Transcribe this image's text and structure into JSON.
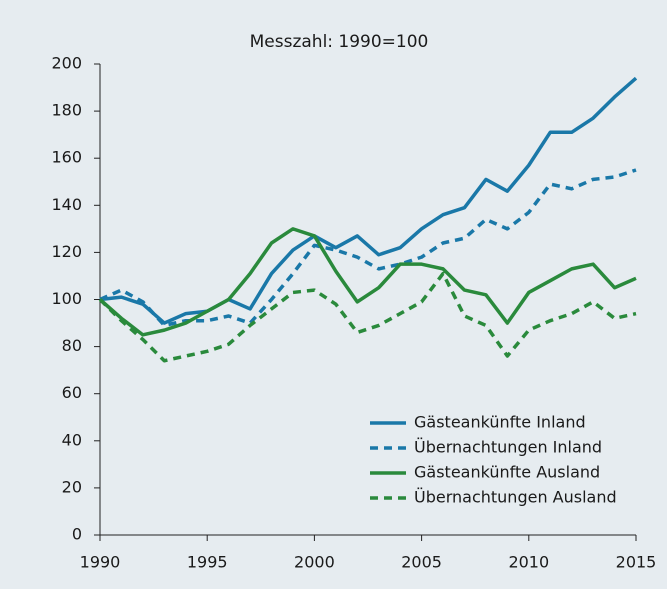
{
  "chart_data": {
    "type": "line",
    "title": "Messzahl: 1990=100",
    "x": [
      1990,
      1991,
      1992,
      1993,
      1994,
      1995,
      1996,
      1997,
      1998,
      1999,
      2000,
      2001,
      2002,
      2003,
      2004,
      2005,
      2006,
      2007,
      2008,
      2009,
      2010,
      2011,
      2012,
      2013,
      2014,
      2015
    ],
    "xlim": [
      1990,
      2015
    ],
    "xticks": [
      1990,
      1995,
      2000,
      2005,
      2010,
      2015
    ],
    "ylim": [
      0,
      200
    ],
    "yticks": [
      0,
      20,
      40,
      60,
      80,
      100,
      120,
      140,
      160,
      180,
      200
    ],
    "legend": "lower right",
    "series": [
      {
        "name": "Gästeankünfte Inland",
        "color": "#1a78a8",
        "dashed": false,
        "values": [
          100,
          101,
          98,
          90,
          94,
          95,
          100,
          96,
          111,
          121,
          127,
          122,
          127,
          119,
          122,
          130,
          136,
          139,
          151,
          146,
          157,
          171,
          171,
          177,
          186,
          194
        ]
      },
      {
        "name": "Übernachtungen Inland",
        "color": "#1a78a8",
        "dashed": true,
        "values": [
          100,
          104,
          99,
          89,
          91,
          91,
          93,
          90,
          100,
          111,
          123,
          121,
          118,
          113,
          115,
          118,
          124,
          126,
          134,
          130,
          137,
          149,
          147,
          151,
          152,
          155
        ]
      },
      {
        "name": "Gästeankünfte Ausland",
        "color": "#2a8a3c",
        "dashed": false,
        "values": [
          100,
          92,
          85,
          87,
          90,
          95,
          100,
          111,
          124,
          130,
          127,
          112,
          99,
          105,
          115,
          115,
          113,
          104,
          102,
          90,
          103,
          108,
          113,
          115,
          105,
          109
        ]
      },
      {
        "name": "Übernachtungen Ausland",
        "color": "#2a8a3c",
        "dashed": true,
        "values": [
          100,
          91,
          83,
          74,
          76,
          78,
          81,
          89,
          96,
          103,
          104,
          98,
          86,
          89,
          94,
          99,
          111,
          93,
          89,
          76,
          87,
          91,
          94,
          99,
          92,
          94
        ]
      }
    ]
  }
}
